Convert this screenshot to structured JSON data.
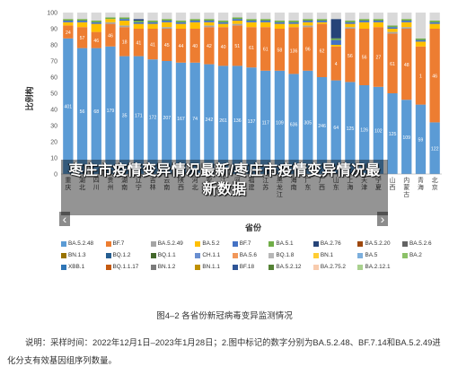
{
  "chart_data": {
    "type": "bar",
    "stacked": true,
    "percent": true,
    "ylabel": "比例构",
    "xlabel": "省份",
    "ylim": [
      0,
      100
    ],
    "yticks": [
      "0",
      "10",
      "20",
      "30",
      "40",
      "50",
      "60",
      "70",
      "80",
      "90",
      "100"
    ],
    "grid": false,
    "legend_position": "bottom",
    "categories": [
      "重庆",
      "湖北",
      "四川",
      "贵州",
      "湖南",
      "辽宁",
      "吉林",
      "云南",
      "陕西",
      "河北",
      "安徽",
      "江西",
      "河南",
      "福建",
      "江苏",
      "黑龙江",
      "海南",
      "广东",
      "广西",
      "山东",
      "上海",
      "天津",
      "宁夏",
      "山西",
      "内蒙古",
      "青海",
      "北京"
    ],
    "series": [
      {
        "name": "BA.5.2.48",
        "color": "#5b9bd5",
        "values": [
          84,
          78,
          78,
          79,
          73,
          73,
          71,
          70,
          69,
          69,
          68,
          67,
          67,
          66,
          64,
          64,
          62,
          64,
          60,
          58,
          57,
          55,
          54,
          50,
          46,
          43,
          32
        ],
        "labels": [
          "401",
          "56",
          "68",
          "179",
          "35",
          "171",
          "172",
          "207",
          "167",
          "74",
          "242",
          "261",
          "136",
          "137",
          "117",
          "109",
          "636",
          "305",
          "246",
          "64",
          "125",
          "126",
          "102",
          "125",
          "109",
          "59",
          "122"
        ]
      },
      {
        "name": "BF.7",
        "color": "#ed7d31",
        "values": [
          8,
          13,
          10,
          14,
          18,
          17,
          19,
          20,
          21,
          21,
          23,
          24,
          25,
          25,
          27,
          26,
          29,
          27,
          33,
          21,
          33,
          35,
          37,
          37,
          44,
          36,
          58
        ],
        "labels": [
          "24",
          "57",
          "46",
          "46",
          "18",
          "41",
          "41",
          "45",
          "44",
          "40",
          "42",
          "40",
          "51",
          "61",
          "61",
          "58",
          "136",
          "96",
          "62",
          "4",
          "56",
          "56",
          "27",
          "61",
          "48",
          "1",
          "46"
        ]
      },
      {
        "name": "BA.5.2.49",
        "color": "#a5a5a5",
        "values": [
          0,
          0,
          0,
          1,
          1,
          0,
          0,
          1,
          0,
          0,
          1,
          0,
          1,
          0,
          0,
          0,
          0,
          1,
          0,
          0,
          1,
          0,
          0,
          1,
          1,
          0,
          0
        ]
      },
      {
        "name": "BA.5.2",
        "color": "#ffc000",
        "values": [
          2,
          3,
          5,
          2,
          3,
          3,
          3,
          3,
          3,
          4,
          2,
          2,
          2,
          3,
          3,
          3,
          2,
          2,
          1,
          1,
          2,
          4,
          3,
          2,
          3,
          3,
          3
        ]
      },
      {
        "name": "BF.7",
        "color": "#4472c4",
        "values": [
          1,
          1,
          1,
          0,
          1,
          1,
          1,
          1,
          1,
          1,
          1,
          1,
          1,
          1,
          1,
          1,
          1,
          1,
          1,
          3,
          1,
          1,
          1,
          1,
          1,
          1,
          1
        ]
      },
      {
        "name": "BA.5.1",
        "color": "#70ad47",
        "values": [
          1,
          1,
          1,
          1,
          1,
          1,
          1,
          1,
          1,
          1,
          1,
          1,
          1,
          1,
          1,
          1,
          1,
          1,
          1,
          1,
          1,
          1,
          1,
          1,
          1,
          1,
          1
        ]
      },
      {
        "name": "BA.2.76",
        "color": "#264478",
        "values": [
          0,
          0,
          0,
          0,
          0,
          1,
          0,
          0,
          0,
          0,
          0,
          0,
          0,
          0,
          0,
          0,
          0,
          0,
          0,
          12,
          0,
          0,
          0,
          0,
          0,
          0,
          0
        ]
      },
      {
        "name": "BA.5.2.20",
        "color": "#9e480e",
        "values": [
          0,
          0,
          0,
          0,
          0,
          0,
          0,
          0,
          0,
          0,
          0,
          0,
          0,
          0,
          0,
          0,
          0,
          0,
          0,
          0,
          0,
          0,
          0,
          0,
          0,
          0,
          0
        ]
      },
      {
        "name": "BA.5.2.6",
        "color": "#636363",
        "values": [
          0,
          0,
          0,
          0,
          0,
          0,
          0,
          0,
          0,
          0,
          0,
          0,
          0,
          0,
          0,
          0,
          0,
          0,
          0,
          0,
          0,
          0,
          0,
          0,
          0,
          0,
          0
        ]
      },
      {
        "name": "BN.1.3",
        "color": "#997300",
        "values": [
          0,
          0,
          0,
          0,
          0,
          0,
          0,
          0,
          0,
          0,
          0,
          0,
          0,
          0,
          0,
          0,
          0,
          0,
          0,
          0,
          0,
          0,
          0,
          0,
          0,
          0,
          0
        ]
      },
      {
        "name": "BQ.1.2",
        "color": "#255e91",
        "values": [
          0,
          0,
          0,
          0,
          0,
          0,
          0,
          0,
          0,
          0,
          0,
          0,
          0,
          0,
          0,
          0,
          0,
          0,
          0,
          0,
          0,
          0,
          0,
          0,
          0,
          0,
          0
        ]
      },
      {
        "name": "BQ.1.1",
        "color": "#43682b",
        "values": [
          0,
          0,
          0,
          0,
          0,
          0,
          0,
          0,
          0,
          0,
          0,
          0,
          0,
          0,
          0,
          0,
          0,
          0,
          0,
          0,
          0,
          0,
          0,
          0,
          0,
          0,
          0
        ]
      },
      {
        "name": "CH.1.1",
        "color": "#698ed0",
        "values": [
          0,
          0,
          0,
          0,
          0,
          0,
          0,
          0,
          0,
          0,
          0,
          0,
          0,
          0,
          0,
          0,
          0,
          0,
          0,
          0,
          0,
          0,
          0,
          0,
          0,
          0,
          0
        ]
      },
      {
        "name": "BA.5.6",
        "color": "#f1975a",
        "values": [
          0,
          0,
          0,
          0,
          0,
          0,
          0,
          0,
          0,
          0,
          0,
          0,
          0,
          0,
          0,
          0,
          0,
          0,
          0,
          0,
          0,
          0,
          0,
          0,
          0,
          0,
          0
        ]
      },
      {
        "name": "BQ.1.8",
        "color": "#b7b7b7",
        "values": [
          0,
          0,
          0,
          0,
          0,
          0,
          0,
          0,
          0,
          0,
          0,
          0,
          0,
          0,
          0,
          0,
          0,
          0,
          0,
          0,
          0,
          0,
          0,
          0,
          0,
          0,
          0
        ]
      },
      {
        "name": "BN.1",
        "color": "#ffcd33",
        "values": [
          0,
          0,
          0,
          0,
          0,
          0,
          0,
          0,
          0,
          0,
          0,
          0,
          0,
          0,
          0,
          0,
          0,
          0,
          0,
          0,
          0,
          0,
          0,
          0,
          0,
          0,
          0
        ]
      },
      {
        "name": "BA.5",
        "color": "#7cafdd",
        "values": [
          0,
          0,
          0,
          0,
          0,
          0,
          0,
          0,
          0,
          0,
          0,
          0,
          0,
          0,
          0,
          0,
          0,
          0,
          0,
          0,
          0,
          0,
          0,
          0,
          0,
          0,
          0
        ]
      },
      {
        "name": "BA.2",
        "color": "#8cc168",
        "values": [
          0,
          0,
          0,
          0,
          0,
          0,
          0,
          0,
          0,
          0,
          0,
          0,
          0,
          0,
          0,
          0,
          0,
          0,
          0,
          0,
          0,
          0,
          0,
          0,
          0,
          0,
          0
        ]
      },
      {
        "name": "XBB.1",
        "color": "#2e75b6",
        "values": [
          0,
          0,
          0,
          0,
          0,
          0,
          0,
          0,
          0,
          0,
          0,
          0,
          0,
          0,
          0,
          0,
          0,
          0,
          0,
          0,
          0,
          0,
          0,
          0,
          0,
          0,
          0
        ]
      },
      {
        "name": "BQ.1.1.17",
        "color": "#c55a11",
        "values": [
          0,
          0,
          0,
          0,
          0,
          0,
          0,
          0,
          0,
          0,
          0,
          0,
          0,
          0,
          0,
          0,
          0,
          0,
          0,
          0,
          0,
          0,
          0,
          0,
          0,
          0,
          0
        ]
      },
      {
        "name": "BN.1.2",
        "color": "#7b7b7b",
        "values": [
          0,
          0,
          0,
          0,
          0,
          0,
          0,
          0,
          0,
          0,
          0,
          0,
          0,
          0,
          0,
          0,
          0,
          0,
          0,
          0,
          0,
          0,
          0,
          0,
          0,
          0,
          0
        ]
      },
      {
        "name": "BN.1.1",
        "color": "#bf9000",
        "values": [
          0,
          0,
          0,
          0,
          0,
          0,
          0,
          0,
          0,
          0,
          0,
          0,
          0,
          0,
          0,
          0,
          0,
          0,
          0,
          0,
          0,
          0,
          0,
          0,
          0,
          0,
          0
        ]
      },
      {
        "name": "BF.18",
        "color": "#2f5597",
        "values": [
          0,
          0,
          0,
          0,
          0,
          0,
          0,
          0,
          0,
          0,
          0,
          0,
          0,
          0,
          0,
          0,
          0,
          0,
          0,
          0,
          0,
          0,
          0,
          0,
          0,
          0,
          0
        ]
      },
      {
        "name": "BA.5.2.12",
        "color": "#548235",
        "values": [
          0,
          0,
          0,
          0,
          0,
          0,
          0,
          0,
          0,
          0,
          0,
          0,
          0,
          0,
          0,
          0,
          0,
          0,
          0,
          0,
          0,
          0,
          0,
          0,
          0,
          0,
          0
        ]
      },
      {
        "name": "BA.2.75.2",
        "color": "#f8cbad",
        "values": [
          0,
          0,
          0,
          0,
          0,
          0,
          0,
          0,
          0,
          0,
          0,
          0,
          0,
          0,
          0,
          0,
          0,
          0,
          0,
          0,
          0,
          0,
          0,
          0,
          0,
          0,
          0
        ]
      },
      {
        "name": "BA.2.12.1",
        "color": "#a9d18e",
        "values": [
          0,
          0,
          0,
          0,
          0,
          0,
          0,
          0,
          0,
          0,
          0,
          0,
          0,
          0,
          0,
          0,
          0,
          0,
          0,
          0,
          0,
          0,
          0,
          0,
          0,
          0,
          0
        ]
      }
    ]
  },
  "overlay": {
    "title": "枣庄市疫情变异情况最新/枣庄市疫情变异情况最新数据"
  },
  "arrows": {
    "left": "‹",
    "right": "›"
  },
  "caption": "图4–2  各省份新冠病毒变异监测情况",
  "note": "说明：采样时间：2022年12月1日–2023年1月28日；2.图中标记的数字分别为BA.5.2.48、BF.7.14和BA.5.2.49进化分支有效基因组序列数量。"
}
